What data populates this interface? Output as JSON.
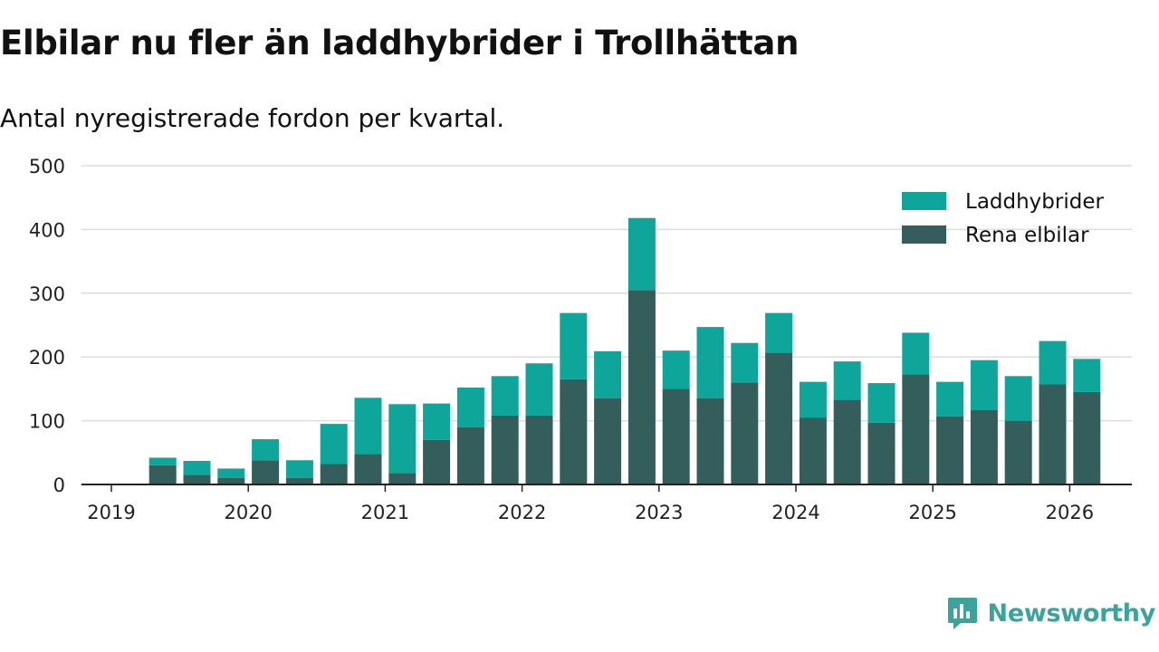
{
  "header": {
    "title": "Elbilar nu fler än laddhybrider i Trollhättan",
    "subtitle": "Antal nyregistrerade fordon per kvartal."
  },
  "brand": {
    "name": "Newsworthy",
    "icon": "newsworthy-logo-icon",
    "color": "#3aa39a"
  },
  "chart_data": {
    "type": "bar",
    "stacked": true,
    "title": "Elbilar nu fler än laddhybrider i Trollhättan",
    "subtitle": "Antal nyregistrerade fordon per kvartal.",
    "xlabel": "",
    "ylabel": "",
    "ylim": [
      0,
      500
    ],
    "yticks": [
      0,
      100,
      200,
      300,
      400,
      500
    ],
    "xticks": [
      "2019",
      "2020",
      "2021",
      "2022",
      "2023",
      "2024",
      "2025",
      "2026"
    ],
    "xlim": [
      "2019Q1",
      "2026Q2"
    ],
    "grid": true,
    "legend_position": "top-right",
    "categories": [
      "2019Q2",
      "2019Q3",
      "2019Q4",
      "2020Q1",
      "2020Q2",
      "2020Q3",
      "2020Q4",
      "2021Q1",
      "2021Q2",
      "2021Q3",
      "2021Q4",
      "2022Q1",
      "2022Q2",
      "2022Q3",
      "2022Q4",
      "2023Q1",
      "2023Q2",
      "2023Q3",
      "2023Q4",
      "2024Q1",
      "2024Q2",
      "2024Q3",
      "2024Q4",
      "2025Q1",
      "2025Q2",
      "2025Q3",
      "2025Q4",
      "2026Q1"
    ],
    "series": [
      {
        "name": "Rena elbilar",
        "color": "#335e5b",
        "values": [
          30,
          15,
          10,
          38,
          10,
          32,
          48,
          18,
          70,
          90,
          108,
          108,
          165,
          135,
          305,
          150,
          135,
          160,
          207,
          105,
          133,
          97,
          173,
          107,
          117,
          100,
          157,
          145
        ]
      },
      {
        "name": "Laddhybrider",
        "color": "#0ea69b",
        "values": [
          12,
          22,
          15,
          33,
          28,
          63,
          88,
          108,
          57,
          62,
          62,
          82,
          104,
          74,
          113,
          60,
          112,
          62,
          62,
          56,
          60,
          62,
          65,
          54,
          78,
          70,
          68,
          52
        ]
      }
    ]
  }
}
